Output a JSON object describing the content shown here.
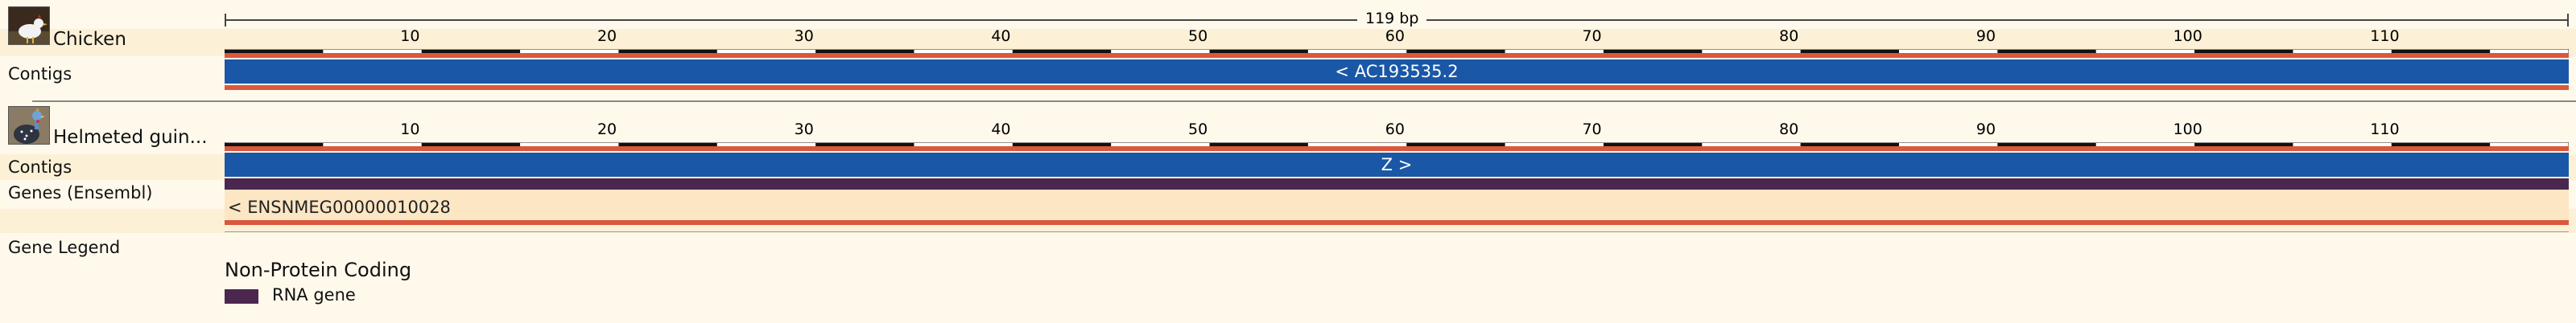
{
  "scale_bar": {
    "label": "119 bp"
  },
  "ruler": {
    "start": 1,
    "end": 119,
    "tick_labels": [
      "10",
      "20",
      "30",
      "40",
      "50",
      "60",
      "70",
      "80",
      "90",
      "100",
      "110"
    ]
  },
  "species": [
    {
      "name": "Chicken",
      "contigs_label": "Contigs",
      "contig_text": "< AC193535.2"
    },
    {
      "name": "Helmeted guin...",
      "contigs_label": "Contigs",
      "contig_text": "Z >",
      "genes_label": "Genes (Ensembl)",
      "gene_text": "< ENSNMEG00000010028"
    }
  ],
  "legend": {
    "label": "Gene Legend",
    "heading": "Non-Protein Coding",
    "items": [
      {
        "label": "RNA gene",
        "color": "#4b2750"
      }
    ]
  },
  "colors": {
    "contig": "#1a57a6",
    "gene": "#4b2750",
    "highlight": "#d9583e",
    "background": "#fff9ec",
    "stripe": "#fcf0d6"
  }
}
